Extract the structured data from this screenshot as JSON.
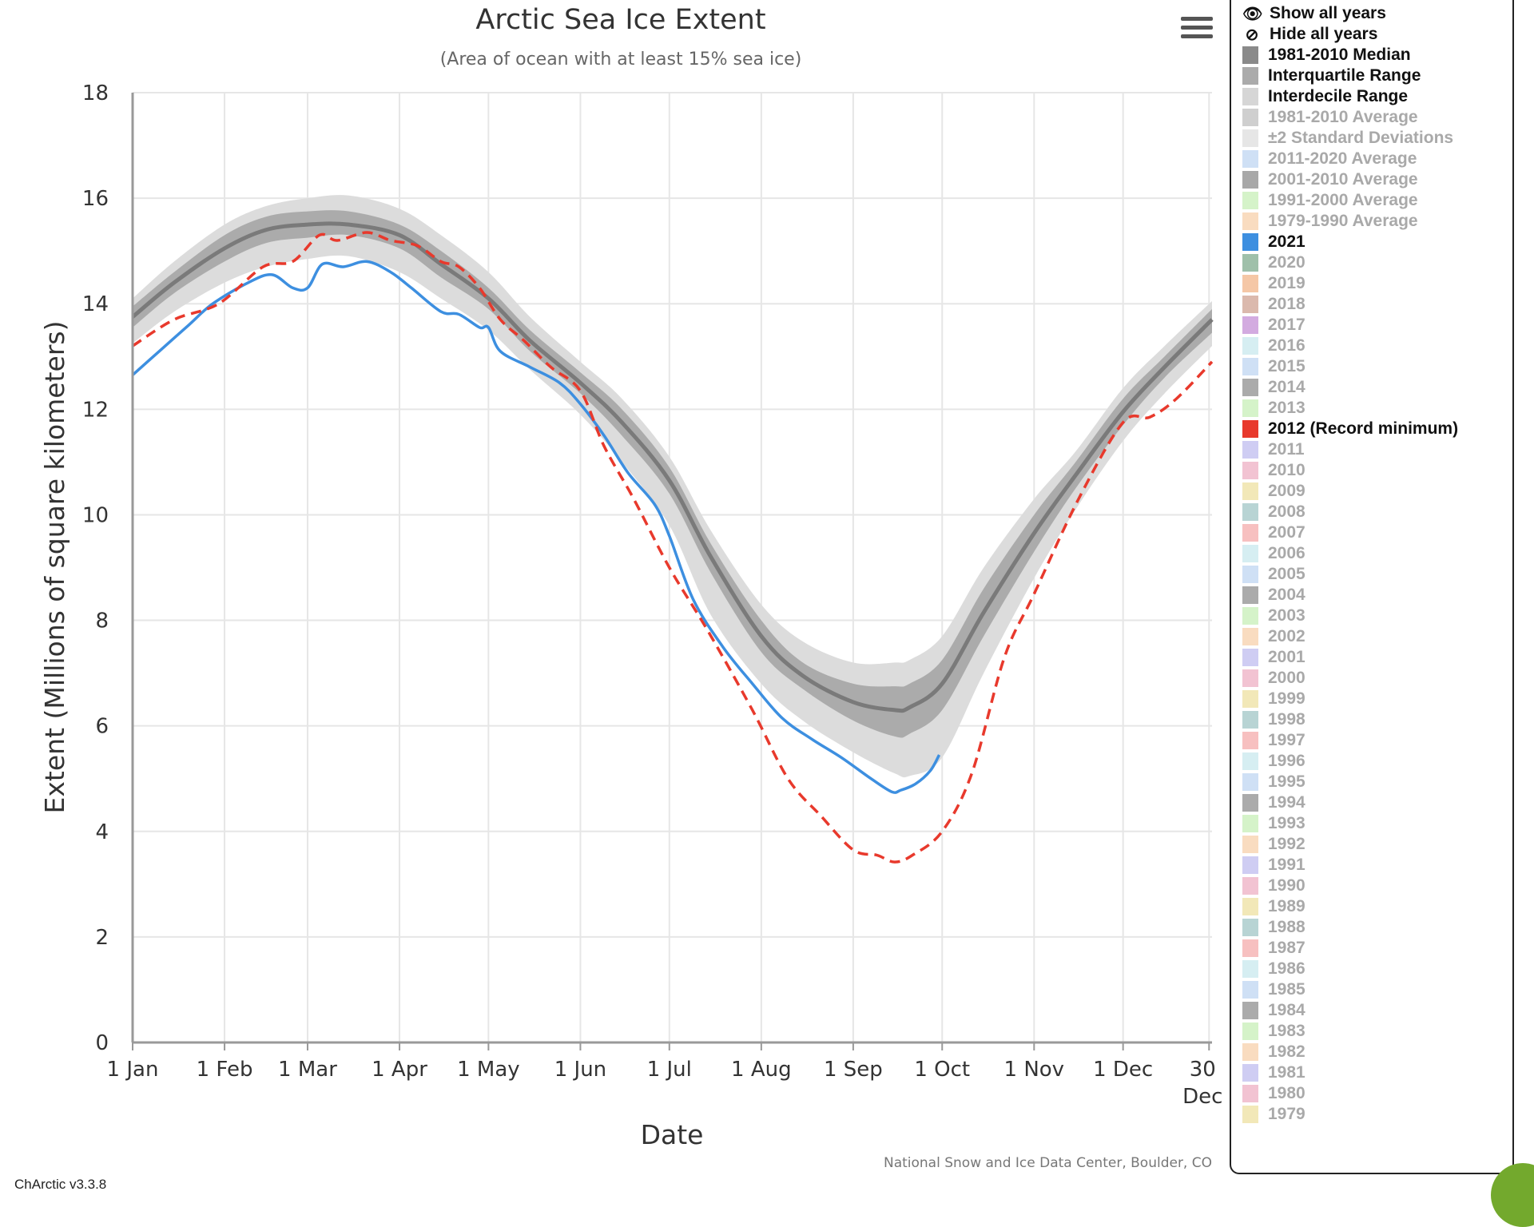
{
  "chart_title": "Arctic Sea Ice Extent",
  "chart_subtitle": "(Area of ocean with at least 15% sea ice)",
  "credit": "National Snow and Ice Data Center, Boulder, CO",
  "version": "ChArctic v3.3.8",
  "menu_icon": "hamburger-menu-icon",
  "legend": {
    "show_all": "Show all years",
    "hide_all": "Hide all years",
    "show_icon": "eye-icon",
    "hide_icon": "eye-slash-icon",
    "items": [
      {
        "label": "1981-2010 Median",
        "color": "#8a8a8a",
        "visible": true
      },
      {
        "label": "Interquartile Range",
        "color": "#ababab",
        "visible": true
      },
      {
        "label": "Interdecile Range",
        "color": "#d6d6d6",
        "visible": true
      },
      {
        "label": "1981-2010 Average",
        "color": "#cfcfcf",
        "visible": false
      },
      {
        "label": "±2 Standard Deviations",
        "color": "#e6e6e6",
        "visible": false
      },
      {
        "label": "2011-2020 Average",
        "color": "#cfe0f5",
        "visible": false
      },
      {
        "label": "2001-2010 Average",
        "color": "#a8a8a8",
        "visible": false
      },
      {
        "label": "1991-2000 Average",
        "color": "#d5f3c9",
        "visible": false
      },
      {
        "label": "1979-1990 Average",
        "color": "#f9dcc0",
        "visible": false
      },
      {
        "label": "2021",
        "color": "#3d8fe0",
        "visible": true
      },
      {
        "label": "2020",
        "color": "#9fc0aa",
        "visible": false
      },
      {
        "label": "2019",
        "color": "#f5c7a6",
        "visible": false
      },
      {
        "label": "2018",
        "color": "#dbb9ad",
        "visible": false
      },
      {
        "label": "2017",
        "color": "#d3abe0",
        "visible": false
      },
      {
        "label": "2016",
        "color": "#d6eef2",
        "visible": false
      },
      {
        "label": "2015",
        "color": "#cfe0f5",
        "visible": false
      },
      {
        "label": "2014",
        "color": "#ababab",
        "visible": false
      },
      {
        "label": "2013",
        "color": "#d5f3c9",
        "visible": false
      },
      {
        "label": "2012 (Record minimum)",
        "color": "#e8392c",
        "visible": true
      },
      {
        "label": "2011",
        "color": "#cfcdf3",
        "visible": false
      },
      {
        "label": "2010",
        "color": "#f2c3d2",
        "visible": false
      },
      {
        "label": "2009",
        "color": "#f2e8b8",
        "visible": false
      },
      {
        "label": "2008",
        "color": "#b8d4d4",
        "visible": false
      },
      {
        "label": "2007",
        "color": "#f7c0c0",
        "visible": false
      },
      {
        "label": "2006",
        "color": "#d6eef2",
        "visible": false
      },
      {
        "label": "2005",
        "color": "#cfe0f5",
        "visible": false
      },
      {
        "label": "2004",
        "color": "#ababab",
        "visible": false
      },
      {
        "label": "2003",
        "color": "#d5f3c9",
        "visible": false
      },
      {
        "label": "2002",
        "color": "#f9dcc0",
        "visible": false
      },
      {
        "label": "2001",
        "color": "#cfcdf3",
        "visible": false
      },
      {
        "label": "2000",
        "color": "#f2c3d2",
        "visible": false
      },
      {
        "label": "1999",
        "color": "#f2e8b8",
        "visible": false
      },
      {
        "label": "1998",
        "color": "#b8d4d4",
        "visible": false
      },
      {
        "label": "1997",
        "color": "#f7c0c0",
        "visible": false
      },
      {
        "label": "1996",
        "color": "#d6eef2",
        "visible": false
      },
      {
        "label": "1995",
        "color": "#cfe0f5",
        "visible": false
      },
      {
        "label": "1994",
        "color": "#ababab",
        "visible": false
      },
      {
        "label": "1993",
        "color": "#d5f3c9",
        "visible": false
      },
      {
        "label": "1992",
        "color": "#f9dcc0",
        "visible": false
      },
      {
        "label": "1991",
        "color": "#cfcdf3",
        "visible": false
      },
      {
        "label": "1990",
        "color": "#f2c3d2",
        "visible": false
      },
      {
        "label": "1989",
        "color": "#f2e8b8",
        "visible": false
      },
      {
        "label": "1988",
        "color": "#b8d4d4",
        "visible": false
      },
      {
        "label": "1987",
        "color": "#f7c0c0",
        "visible": false
      },
      {
        "label": "1986",
        "color": "#d6eef2",
        "visible": false
      },
      {
        "label": "1985",
        "color": "#cfe0f5",
        "visible": false
      },
      {
        "label": "1984",
        "color": "#ababab",
        "visible": false
      },
      {
        "label": "1983",
        "color": "#d5f3c9",
        "visible": false
      },
      {
        "label": "1982",
        "color": "#f9dcc0",
        "visible": false
      },
      {
        "label": "1981",
        "color": "#cfcdf3",
        "visible": false
      },
      {
        "label": "1980",
        "color": "#f2c3d2",
        "visible": false
      },
      {
        "label": "1979",
        "color": "#f2e8b8",
        "visible": false
      }
    ]
  },
  "chart_data": {
    "type": "line",
    "title": "Arctic Sea Ice Extent",
    "subtitle": "(Area of ocean with at least 15% sea ice)",
    "xlabel": "Date",
    "ylabel": "Extent (Millions of square kilometers)",
    "x_unit": "day of year",
    "xlim": [
      1,
      365
    ],
    "ylim": [
      0,
      18
    ],
    "yticks": [
      0,
      2,
      4,
      6,
      8,
      10,
      12,
      14,
      16,
      18
    ],
    "xticks": [
      {
        "day": 1,
        "label": "1 Jan"
      },
      {
        "day": 32,
        "label": "1 Feb"
      },
      {
        "day": 60,
        "label": "1 Mar"
      },
      {
        "day": 91,
        "label": "1 Apr"
      },
      {
        "day": 121,
        "label": "1 May"
      },
      {
        "day": 152,
        "label": "1 Jun"
      },
      {
        "day": 182,
        "label": "1 Jul"
      },
      {
        "day": 213,
        "label": "1 Aug"
      },
      {
        "day": 244,
        "label": "1 Sep"
      },
      {
        "day": 274,
        "label": "1 Oct"
      },
      {
        "day": 305,
        "label": "1 Nov"
      },
      {
        "day": 335,
        "label": "1 Dec"
      },
      {
        "day": 364,
        "label": "30 Dec"
      }
    ],
    "grid": true,
    "legend_position": "right",
    "x": [
      1,
      15,
      32,
      46,
      60,
      74,
      91,
      105,
      121,
      135,
      152,
      166,
      182,
      196,
      213,
      227,
      244,
      258,
      263,
      274,
      288,
      305,
      319,
      335,
      349,
      365
    ],
    "interdecile_upper": [
      14.1,
      14.8,
      15.5,
      15.85,
      16.0,
      16.05,
      15.8,
      15.3,
      14.6,
      13.75,
      12.9,
      12.2,
      11.1,
      9.7,
      8.3,
      7.6,
      7.2,
      7.2,
      7.25,
      7.7,
      9.0,
      10.3,
      11.2,
      12.4,
      13.2,
      14.05
    ],
    "interquartile_upper": [
      13.95,
      14.6,
      15.3,
      15.65,
      15.75,
      15.75,
      15.5,
      15.0,
      14.3,
      13.5,
      12.7,
      12.0,
      10.9,
      9.45,
      8.0,
      7.2,
      6.8,
      6.75,
      6.8,
      7.25,
      8.6,
      10.0,
      11.0,
      12.2,
      13.0,
      13.9
    ],
    "interquartile_lower": [
      13.55,
      14.2,
      14.8,
      15.15,
      15.25,
      15.3,
      15.05,
      14.5,
      13.9,
      13.1,
      12.3,
      11.5,
      10.4,
      8.9,
      7.4,
      6.7,
      6.1,
      5.8,
      5.85,
      6.3,
      7.7,
      9.3,
      10.5,
      11.7,
      12.6,
      13.45
    ],
    "interdecile_lower": [
      13.25,
      13.85,
      14.4,
      14.7,
      14.85,
      14.9,
      14.6,
      14.1,
      13.5,
      12.75,
      11.9,
      11.0,
      9.8,
      8.1,
      6.8,
      6.1,
      5.5,
      5.1,
      5.05,
      5.4,
      7.0,
      8.8,
      10.1,
      11.4,
      12.3,
      13.2
    ],
    "series": [
      {
        "name": "1981-2010 Median",
        "color": "#7a7a7a",
        "style": "solid",
        "x": [
          1,
          15,
          32,
          46,
          60,
          74,
          91,
          105,
          121,
          135,
          152,
          166,
          182,
          196,
          213,
          227,
          244,
          258,
          263,
          274,
          288,
          305,
          319,
          335,
          349,
          365
        ],
        "y": [
          13.75,
          14.4,
          15.05,
          15.4,
          15.5,
          15.5,
          15.3,
          14.75,
          14.1,
          13.3,
          12.5,
          11.75,
          10.65,
          9.2,
          7.7,
          6.95,
          6.45,
          6.3,
          6.35,
          6.8,
          8.15,
          9.65,
          10.75,
          11.95,
          12.8,
          13.7
        ]
      },
      {
        "name": "2021",
        "color": "#3d8fe0",
        "style": "solid",
        "x": [
          1,
          10,
          20,
          28,
          40,
          48,
          55,
          60,
          65,
          72,
          80,
          88,
          95,
          105,
          111,
          118,
          121,
          125,
          135,
          145,
          152,
          160,
          168,
          177,
          182,
          190,
          200,
          210,
          220,
          230,
          240,
          250,
          257,
          260,
          265,
          270,
          273
        ],
        "y": [
          12.65,
          13.1,
          13.6,
          14.0,
          14.4,
          14.55,
          14.3,
          14.3,
          14.75,
          14.7,
          14.8,
          14.6,
          14.3,
          13.85,
          13.8,
          13.55,
          13.55,
          13.1,
          12.8,
          12.5,
          12.1,
          11.5,
          10.8,
          10.2,
          9.6,
          8.4,
          7.5,
          6.8,
          6.15,
          5.75,
          5.4,
          5.0,
          4.75,
          4.78,
          4.9,
          5.15,
          5.45
        ]
      },
      {
        "name": "2012 (Record minimum)",
        "color": "#e8392c",
        "style": "dashed",
        "x": [
          1,
          15,
          30,
          45,
          55,
          64,
          70,
          80,
          88,
          97,
          105,
          111,
          118,
          125,
          133,
          142,
          152,
          160,
          170,
          182,
          195,
          210,
          222,
          233,
          244,
          252,
          258,
          264,
          274,
          284,
          295,
          305,
          320,
          335,
          344,
          353,
          365
        ],
        "y": [
          13.2,
          13.7,
          14.0,
          14.7,
          14.8,
          15.3,
          15.2,
          15.35,
          15.2,
          15.1,
          14.8,
          14.7,
          14.3,
          13.7,
          13.3,
          12.8,
          12.35,
          11.3,
          10.3,
          9.0,
          7.8,
          6.3,
          5.0,
          4.3,
          3.65,
          3.55,
          3.42,
          3.55,
          4.0,
          5.1,
          7.3,
          8.5,
          10.3,
          11.75,
          11.85,
          12.2,
          12.9
        ]
      }
    ]
  }
}
